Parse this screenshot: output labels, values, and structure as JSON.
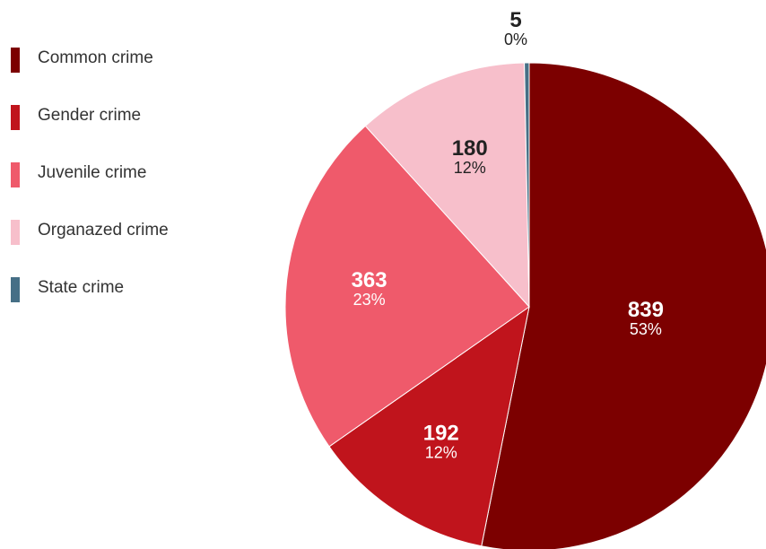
{
  "chart_data": {
    "type": "pie",
    "legend_position": "left",
    "slices": [
      {
        "name": "Common crime",
        "value": 839,
        "percent_label": "53%",
        "color": "#7c0000",
        "label_color": "#ffffff"
      },
      {
        "name": "Gender crime",
        "value": 192,
        "percent_label": "12%",
        "color": "#c0141c",
        "label_color": "#ffffff"
      },
      {
        "name": "Juvenile crime",
        "value": 363,
        "percent_label": "23%",
        "color": "#ef5a6b",
        "label_color": "#ffffff"
      },
      {
        "name": "Organazed crime",
        "value": 180,
        "percent_label": "12%",
        "color": "#f7bfcb",
        "label_color": "#222222"
      },
      {
        "name": "State crime",
        "value": 5,
        "percent_label": "0%",
        "color": "#466f86",
        "label_color": "#222222"
      }
    ]
  }
}
